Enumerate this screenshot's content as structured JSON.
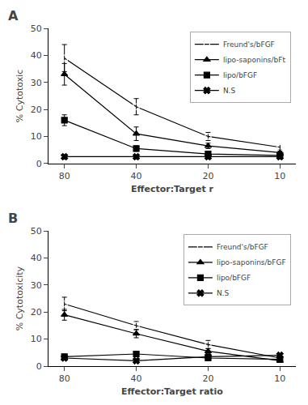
{
  "chart_data": [
    {
      "type": "line",
      "annotations": [
        "A"
      ],
      "xlabel": "Effector:Target r",
      "ylabel": "% Cytotoxic",
      "categories": [
        "80",
        "40",
        "20",
        "10"
      ],
      "ylim": [
        0,
        50
      ],
      "yticks": [
        0,
        10,
        20,
        30,
        40,
        50
      ],
      "grid": false,
      "legend": "upper right",
      "series": [
        {
          "name": "Freund's/bFGF",
          "color": "#000000",
          "marker": "square-open",
          "values": [
            39,
            21,
            10,
            6
          ],
          "yerr": [
            5,
            3,
            1.5,
            1
          ]
        },
        {
          "name": "lipo-saponins/bFt",
          "color": "#000000",
          "marker": "triangle-up",
          "values": [
            33,
            11,
            6.5,
            4
          ],
          "yerr": [
            4,
            2.5,
            1,
            0.5
          ]
        },
        {
          "name": "lipo/bFGF",
          "color": "#000000",
          "marker": "square",
          "values": [
            16,
            5.5,
            3.5,
            3
          ],
          "yerr": [
            2,
            1,
            0.8,
            0.5
          ]
        },
        {
          "name": "N.S",
          "color": "#000000",
          "marker": "x",
          "values": [
            2.5,
            2.5,
            2.5,
            2.5
          ],
          "yerr": [
            0.3,
            0.3,
            0.3,
            0.3
          ]
        }
      ]
    },
    {
      "type": "line",
      "annotations": [
        "B"
      ],
      "xlabel": "Effector:Target ratio",
      "ylabel": "% Cytotoxicity",
      "categories": [
        "80",
        "40",
        "20",
        "10"
      ],
      "ylim": [
        0,
        50
      ],
      "yticks": [
        0,
        10,
        20,
        30,
        40,
        50
      ],
      "grid": false,
      "legend": "upper right",
      "series": [
        {
          "name": "Freund's/bFGF",
          "color": "#000000",
          "marker": "square-open",
          "values": [
            23,
            15,
            8,
            3
          ],
          "yerr": [
            2.5,
            1.5,
            1.5,
            0.8
          ]
        },
        {
          "name": "lipo-saponins/bFGF",
          "color": "#000000",
          "marker": "triangle-up",
          "values": [
            19,
            12,
            5.5,
            2
          ],
          "yerr": [
            2,
            1.5,
            1,
            0.5
          ]
        },
        {
          "name": "lipo/bFGF",
          "color": "#000000",
          "marker": "square",
          "values": [
            3.5,
            4.5,
            3,
            2.5
          ],
          "yerr": [
            0.5,
            0.8,
            0.5,
            0.5
          ]
        },
        {
          "name": "N.S",
          "color": "#000000",
          "marker": "x",
          "values": [
            3,
            2,
            3.5,
            4
          ],
          "yerr": [
            0.3,
            0.3,
            0.5,
            0.5
          ]
        }
      ]
    }
  ]
}
